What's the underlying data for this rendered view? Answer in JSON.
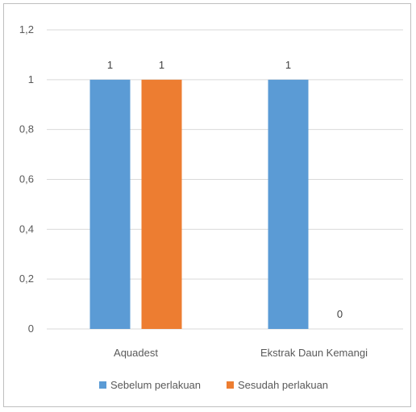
{
  "chart_data": {
    "type": "bar",
    "categories": [
      "Aquadest",
      "Ekstrak Daun Kemangi"
    ],
    "series": [
      {
        "name": "Sebelum perlakuan",
        "values": [
          1,
          1
        ],
        "color": "#5b9bd5"
      },
      {
        "name": "Sesudah perlakuan",
        "values": [
          1,
          0
        ],
        "color": "#ed7d31"
      }
    ],
    "y_ticks": [
      "0",
      "0,2",
      "0,4",
      "0,6",
      "0,8",
      "1",
      "1,2"
    ],
    "y_tick_values": [
      0,
      0.2,
      0.4,
      0.6,
      0.8,
      1.0,
      1.2
    ],
    "data_labels": [
      [
        "1",
        "1"
      ],
      [
        "1",
        "0"
      ]
    ],
    "ylim": [
      0,
      1.2
    ],
    "grid": true,
    "legend_position": "bottom"
  }
}
